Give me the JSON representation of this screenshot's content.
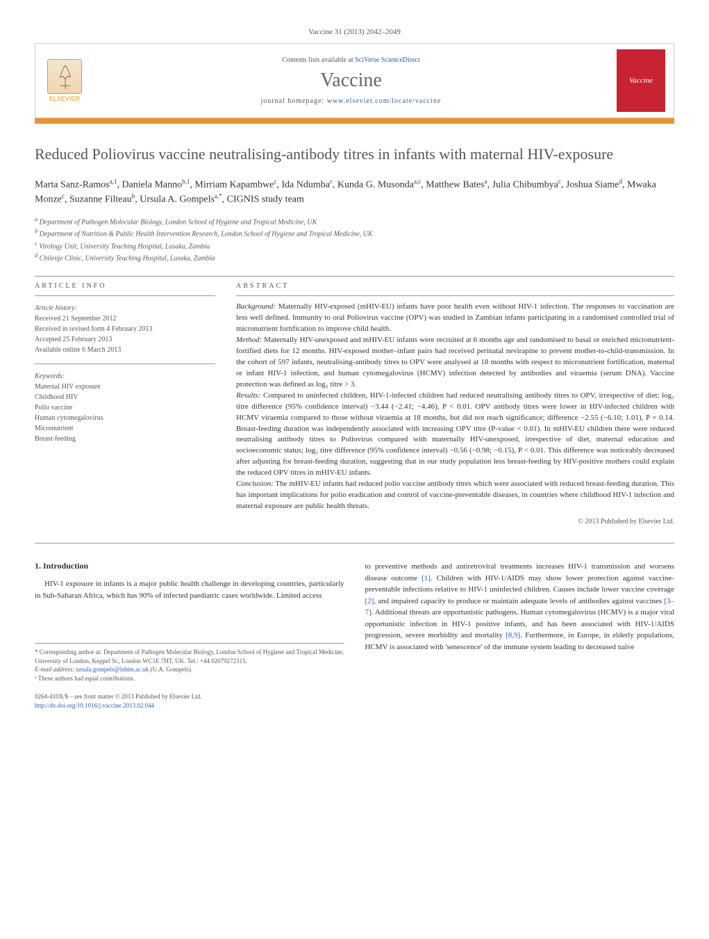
{
  "journal_ref": "Vaccine 31 (2013) 2042–2049",
  "header": {
    "elsevier": "ELSEVIER",
    "contents_prefix": "Contents lists available at ",
    "contents_link": "SciVerse ScienceDirect",
    "journal_name": "Vaccine",
    "homepage_prefix": "journal homepage: ",
    "homepage_link": "www.elsevier.com/locate/vaccine",
    "cover_text": "Vaccine"
  },
  "title": "Reduced Poliovirus vaccine neutralising-antibody titres in infants with maternal HIV-exposure",
  "authors_html": "Marta Sanz-Ramos<sup>a,1</sup>, Daniela Manno<sup>b,1</sup>, Mirriam Kapambwe<sup>c</sup>, Ida Ndumba<sup>c</sup>, Kunda G. Musonda<sup>a,c</sup>, Matthew Bates<sup>a</sup>, Julia Chibumbya<sup>c</sup>, Joshua Siame<sup>d</sup>, Mwaka Monze<sup>c</sup>, Suzanne Filteau<sup>b</sup>, Ursula A. Gompels<sup>a,*</sup>, CIGNIS study team",
  "affiliations": [
    "a Department of Pathogen Molecular Biology, London School of Hygiene and Tropical Medicine, UK",
    "b Department of Nutrition & Public Health Intervention Research, London School of Hygiene and Tropical Medicine, UK",
    "c Virology Unit, University Teaching Hospital, Lusaka, Zambia",
    "d Chilenje Clinic, University Teaching Hospital, Lusaka, Zambia"
  ],
  "article_info": {
    "label": "ARTICLE INFO",
    "history_head": "Article history:",
    "history": [
      "Received 21 September 2012",
      "Received in revised form 4 February 2013",
      "Accepted 25 February 2013",
      "Available online 6 March 2013"
    ],
    "keywords_head": "Keywords:",
    "keywords": [
      "Maternal HIV exposure",
      "Childhood HIV",
      "Polio vaccine",
      "Human cytomegalovirus",
      "Micronutrient",
      "Breast-feeding"
    ]
  },
  "abstract": {
    "label": "ABSTRACT",
    "background_label": "Background:",
    "background": " Maternally HIV-exposed (mHIV-EU) infants have poor health even without HIV-1 infection. The responses to vaccination are less well defined. Immunity to oral Poliovirus vaccine (OPV) was studied in Zambian infants participating in a randomised controlled trial of micronutrient fortification to improve child health.",
    "method_label": "Method:",
    "method": " Maternally HIV-unexposed and mHIV-EU infants were recruited at 6 months age and randomised to basal or enriched micronutrient-fortified diets for 12 months. HIV-exposed mother–infant pairs had received perinatal nevirapine to prevent mother-to-child-transmission. In the cohort of 597 infants, neutralising-antibody titres to OPV were analysed at 18 months with respect to micronutrient fortification, maternal or infant HIV-1 infection, and human cytomegalovirus (HCMV) infection detected by antibodies and viraemia (serum DNA). Vaccine protection was defined as log₂ titre > 3.",
    "results_label": "Results:",
    "results": " Compared to uninfected children, HIV-1-infected children had reduced neutralising antibody titres to OPV, irrespective of diet; log₂ titre difference (95% confidence interval) −3.44 (−2.41; −4.46), P < 0.01. OPV antibody titres were lower in HIV-infected children with HCMV viraemia compared to those without viraemia at 18 months, but did not reach significance; difference −2.55 (−6.10; 1.01), P = 0.14. Breast-feeding duration was independently associated with increasing OPV titre (P-value < 0.01). In mHIV-EU children there were reduced neutralising antibody titres to Poliovirus compared with maternally HIV-unexposed, irrespective of diet, maternal education and socioeconomic status; log₂ titre difference (95% confidence interval) −0.56 (−0.98; −0.15), P < 0.01. This difference was noticeably decreased after adjusting for breast-feeding duration, suggesting that in our study population less breast-feeding by HIV-positive mothers could explain the reduced OPV titres in mHIV-EU infants.",
    "conclusion_label": "Conclusion:",
    "conclusion": " The mHIV-EU infants had reduced polio vaccine antibody titres which were associated with reduced breast-feeding duration. This has important implications for polio eradication and control of vaccine-preventable diseases, in countries where childhood HIV-1 infection and maternal exposure are public health threats.",
    "copyright": "© 2013 Published by Elsevier Ltd."
  },
  "body": {
    "section_num": "1.",
    "section_title": "Introduction",
    "left_para": "HIV-1 exposure in infants is a major public health challenge in developing countries, particularly in Sub-Saharan Africa, which has 90% of infected paediatric cases worldwide. Limited access",
    "right_para": "to preventive methods and antiretroviral treatments increases HIV-1 transmission and worsens disease outcome [1]. Children with HIV-1/AIDS may show lower protection against vaccine-preventable infections relative to HIV-1 uninfected children. Causes include lower vaccine coverage [2], and impaired capacity to produce or maintain adequate levels of antibodies against vaccines [3–7]. Additional threats are opportunistic pathogens. Human cytomegalovirus (HCMV) is a major viral opportunistic infection in HIV-1 positive infants, and has been associated with HIV-1/AIDS progression, severe morbidity and mortality [8,9]. Furthermore, in Europe, in elderly populations, HCMV is associated with 'senescence' of the immune system leading to decreased naïve"
  },
  "footnotes": {
    "corr": "* Corresponding author at: Department of Pathogen Molecular Biology, London School of Hygiene and Tropical Medicine, University of London, Keppel St., London WC1E 7HT, UK. Tel.: +44 02079272315.",
    "email_label": "E-mail address: ",
    "email": "ursula.gompels@lshtm.ac.uk",
    "email_suffix": " (U.A. Gompels).",
    "equal": "¹ These authors had equal contributions."
  },
  "doi": {
    "line1": "0264-410X/$ – see front matter © 2013 Published by Elsevier Ltd.",
    "link": "http://dx.doi.org/10.1016/j.vaccine.2013.02.044"
  }
}
